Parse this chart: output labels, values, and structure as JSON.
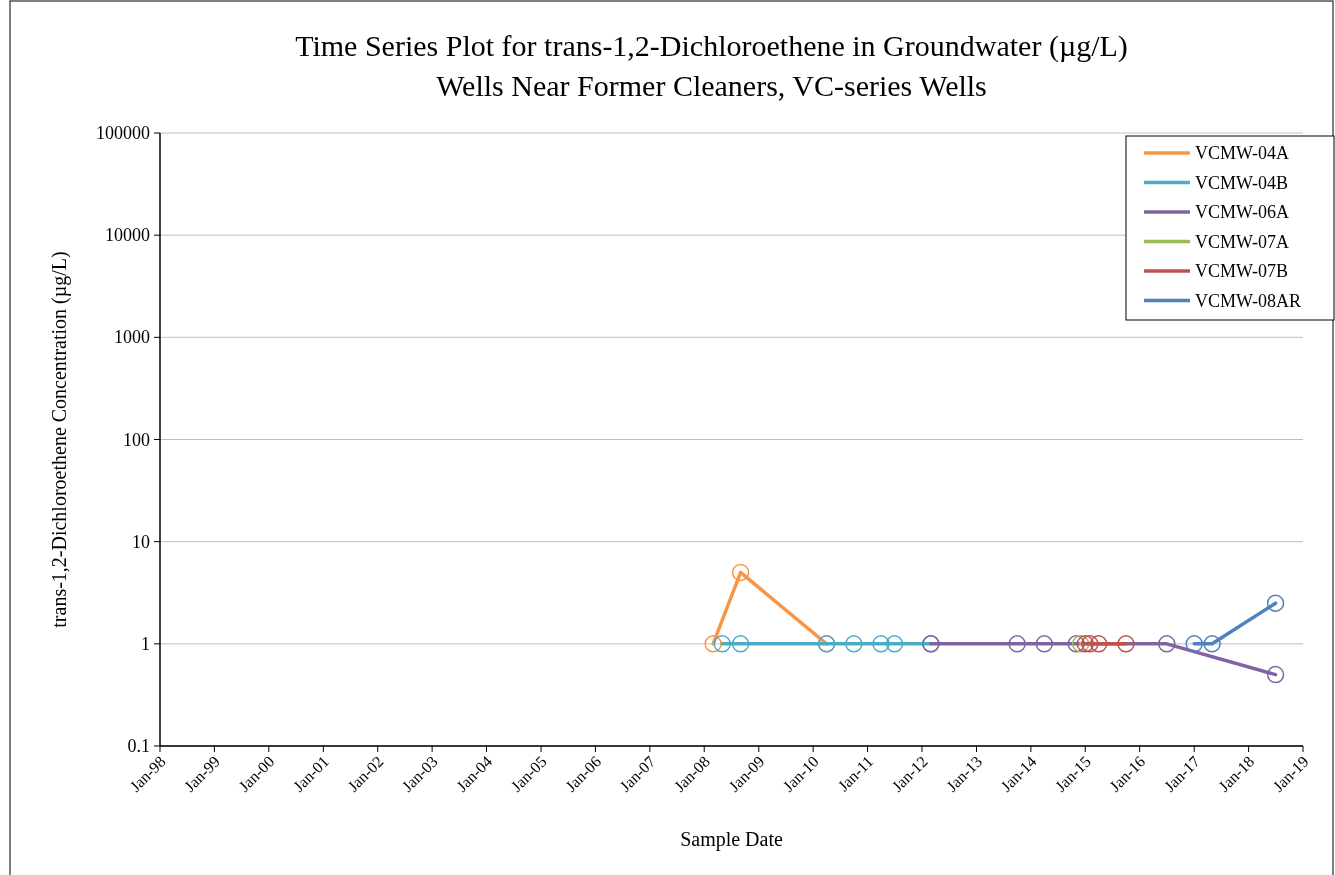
{
  "chart_data": {
    "type": "line",
    "title": "Time Series Plot for trans-1,2-Dichloroethene in Groundwater (µg/L)",
    "subtitle": "Wells Near Former Cleaners, VC-series Wells",
    "xlabel": "Sample Date",
    "ylabel": "trans-1,2-Dichloroethene Concentration (µg/L)",
    "log": "y",
    "grid": "y",
    "legend": "top right",
    "marker": "circle",
    "line_style": "solid",
    "ylim": [
      0.1,
      100000
    ],
    "yticks": [
      0.1,
      1,
      10,
      100,
      1000,
      10000,
      100000
    ],
    "xlim": [
      "1998-01",
      "2019-01"
    ],
    "xticks": [
      {
        "value": "1998-01",
        "label": "Jan-98"
      },
      {
        "value": "1999-01",
        "label": "Jan-99"
      },
      {
        "value": "2000-01",
        "label": "Jan-00"
      },
      {
        "value": "2001-01",
        "label": "Jan-01"
      },
      {
        "value": "2002-01",
        "label": "Jan-02"
      },
      {
        "value": "2003-01",
        "label": "Jan-03"
      },
      {
        "value": "2004-01",
        "label": "Jan-04"
      },
      {
        "value": "2005-01",
        "label": "Jan-05"
      },
      {
        "value": "2006-01",
        "label": "Jan-06"
      },
      {
        "value": "2007-01",
        "label": "Jan-07"
      },
      {
        "value": "2008-01",
        "label": "Jan-08"
      },
      {
        "value": "2009-01",
        "label": "Jan-09"
      },
      {
        "value": "2010-01",
        "label": "Jan-10"
      },
      {
        "value": "2011-01",
        "label": "Jan-11"
      },
      {
        "value": "2012-01",
        "label": "Jan-12"
      },
      {
        "value": "2013-01",
        "label": "Jan-13"
      },
      {
        "value": "2014-01",
        "label": "Jan-14"
      },
      {
        "value": "2015-01",
        "label": "Jan-15"
      },
      {
        "value": "2016-01",
        "label": "Jan-16"
      },
      {
        "value": "2017-01",
        "label": "Jan-17"
      },
      {
        "value": "2018-01",
        "label": "Jan-18"
      },
      {
        "value": "2019-01",
        "label": "Jan-19"
      }
    ],
    "series": [
      {
        "name": "VCMW-04A",
        "color": "#f79646",
        "x": [
          "2008-03",
          "2008-09",
          "2010-04"
        ],
        "values": [
          1,
          5,
          1
        ]
      },
      {
        "name": "VCMW-04B",
        "color": "#4bacc6",
        "x": [
          "2008-05",
          "2008-09",
          "2010-04",
          "2010-10",
          "2011-04",
          "2011-07",
          "2012-03"
        ],
        "values": [
          1,
          1,
          1,
          1,
          1,
          1,
          1
        ]
      },
      {
        "name": "VCMW-06A",
        "color": "#8064a2",
        "x": [
          "2012-03",
          "2013-10",
          "2014-04",
          "2014-11",
          "2016-07",
          "2018-07"
        ],
        "values": [
          1,
          1,
          1,
          1,
          1,
          0.5
        ]
      },
      {
        "name": "VCMW-07A",
        "color": "#9bbb59",
        "x": [
          "2014-12"
        ],
        "values": [
          1
        ]
      },
      {
        "name": "VCMW-07B",
        "color": "#c0504d",
        "x": [
          "2015-01",
          "2015-02",
          "2015-04",
          "2015-10"
        ],
        "values": [
          1,
          1,
          1,
          1
        ]
      },
      {
        "name": "VCMW-08AR",
        "color": "#4f81bd",
        "x": [
          "2017-01",
          "2017-05",
          "2018-07"
        ],
        "values": [
          1,
          1,
          2.5
        ]
      }
    ]
  }
}
